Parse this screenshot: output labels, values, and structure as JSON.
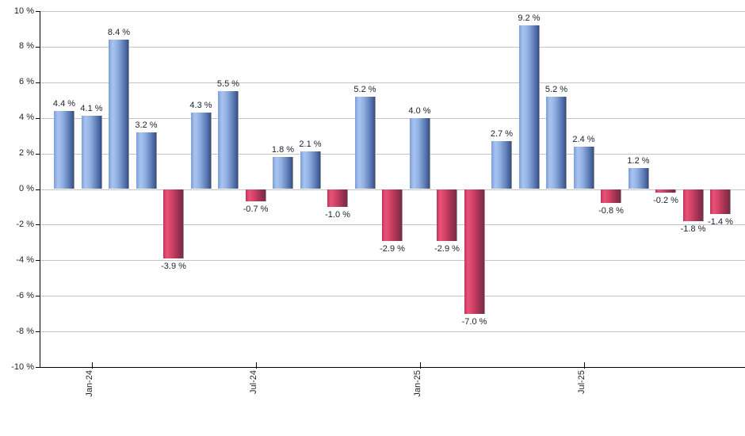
{
  "chart_data": {
    "type": "bar",
    "title": "",
    "xlabel": "",
    "ylabel": "",
    "ylim": [
      -10,
      10
    ],
    "grid": true,
    "legend": "none",
    "values": [
      4.4,
      4.1,
      8.4,
      3.2,
      -3.9,
      4.3,
      5.5,
      -0.7,
      1.8,
      2.1,
      -1.0,
      5.2,
      -2.9,
      4.0,
      -2.9,
      -7.0,
      2.7,
      9.2,
      5.2,
      2.4,
      -0.8,
      1.2,
      -0.2,
      -1.8,
      -1.4
    ],
    "value_labels": [
      "4.4 %",
      "4.1 %",
      "8.4 %",
      "3.2 %",
      "-3.9 %",
      "4.3 %",
      "5.5 %",
      "-0.7 %",
      "1.8 %",
      "2.1 %",
      "-1.0 %",
      "5.2 %",
      "-2.9 %",
      "4.0 %",
      "-2.9 %",
      "-7.0 %",
      "2.7 %",
      "9.2 %",
      "5.2 %",
      "2.4 %",
      "-0.8 %",
      "1.2 %",
      "-0.2 %",
      "-1.8 %",
      "-1.4 %"
    ],
    "y_tick_labels": [
      "10 %",
      "8 %",
      "6 %",
      "4 %",
      "2 %",
      "0 %",
      "-2 %",
      "-4 %",
      "-6 %",
      "-8 %",
      "-10 %"
    ],
    "y_tick_values": [
      10,
      8,
      6,
      4,
      2,
      0,
      -2,
      -4,
      -6,
      -8,
      -10
    ],
    "x_ticks": [
      {
        "label": "Jan-24",
        "bar_index": 1
      },
      {
        "label": "Jul-24",
        "bar_index": 7
      },
      {
        "label": "Jan-25",
        "bar_index": 13
      },
      {
        "label": "Jul-25",
        "bar_index": 19
      }
    ],
    "colors": {
      "positive_bar": "#88aade",
      "negative_bar": "#cc3a5e",
      "gridline": "#c4c4c4",
      "axis": "#000000",
      "label_text": "#1a2230",
      "background": "#ffffff"
    }
  }
}
